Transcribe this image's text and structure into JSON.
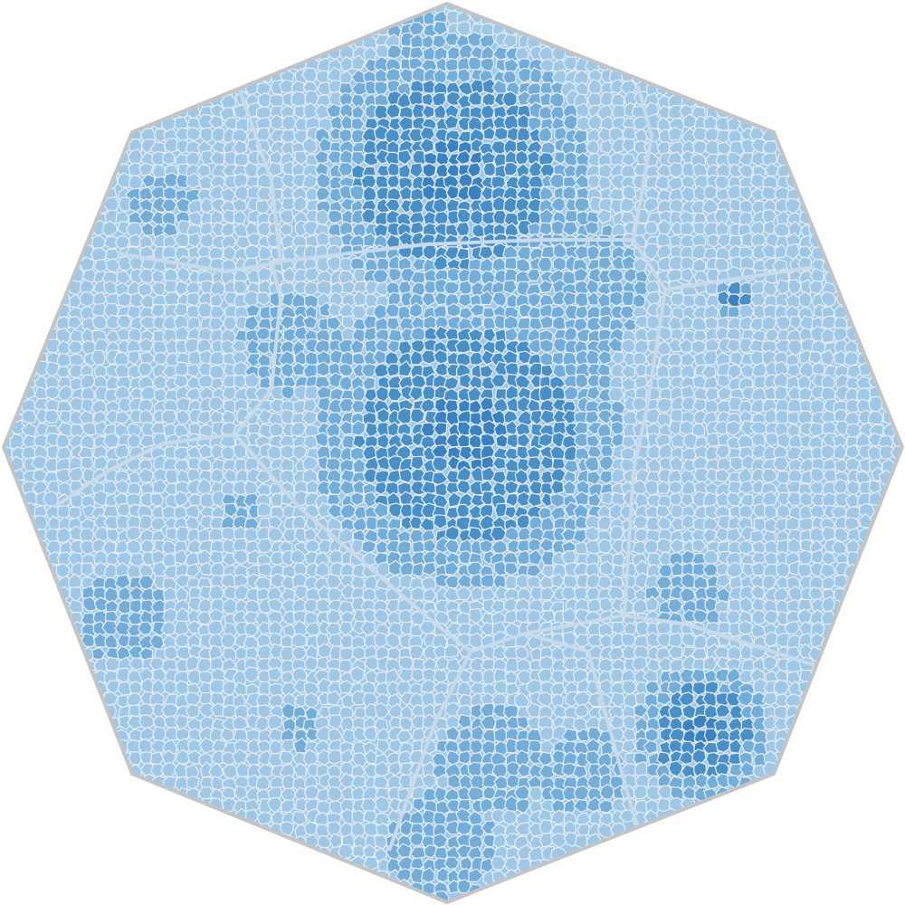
{
  "diagram": {
    "type": "voronoi-treemap",
    "outer_shape": "octagon",
    "text_labels": [],
    "colors": {
      "background": "#ffffff",
      "outline": "#c4c4c4",
      "cell_stroke": "#e9eef3",
      "gap": "#c9dbea",
      "level_1": "#9fc8e6",
      "level_2": "#72aed9",
      "level_3": "#4a90c8",
      "level_4": "#3a82c1"
    },
    "cluster_count": 15,
    "cluster_intensity": [
      2,
      2,
      1,
      1,
      1,
      1,
      2,
      1,
      1,
      1,
      1,
      1,
      1,
      2,
      1
    ]
  }
}
